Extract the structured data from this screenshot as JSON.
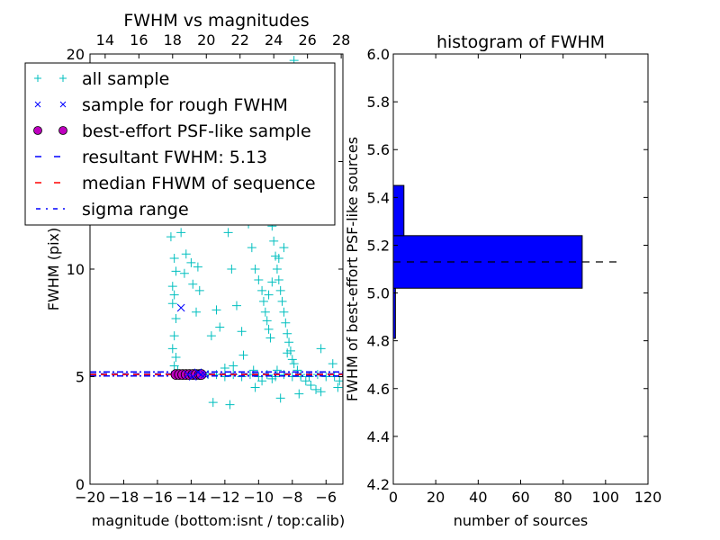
{
  "chart_data": [
    {
      "type": "scatter",
      "title": "FWHM vs magnitudes",
      "xlabel": "magnitude (bottom:isnt / top:calib)",
      "ylabel": "FWHM (pix)",
      "xlim": [
        -20,
        -5
      ],
      "ylim": [
        0,
        20
      ],
      "top_xlim": [
        13.1,
        28.1
      ],
      "xticks": [
        -20,
        -18,
        -16,
        -14,
        -12,
        -10,
        -8,
        -6
      ],
      "xtick_labels": [
        "−20",
        "−18",
        "−16",
        "−14",
        "−12",
        "−10",
        "−8",
        "−6"
      ],
      "yticks": [
        0,
        5,
        10,
        15,
        20
      ],
      "ytick_labels": [
        "0",
        "5",
        "10",
        "15",
        "20"
      ],
      "top_xticks": [
        14,
        16,
        18,
        20,
        22,
        24,
        26,
        28
      ],
      "top_xtick_labels": [
        "14",
        "16",
        "18",
        "20",
        "22",
        "24",
        "26",
        "28"
      ],
      "legend": {
        "placement": "upper-left",
        "entries": [
          {
            "label": "all sample",
            "marker": "+",
            "color": "#00bfbf"
          },
          {
            "label": "sample for rough FWHM",
            "marker": "x",
            "color": "#0000ff"
          },
          {
            "label": "best-effort PSF-like sample",
            "marker": "o",
            "color": "#bf00bf"
          },
          {
            "label": "resultant FWHM: 5.13",
            "marker": "--",
            "color": "#0000ff"
          },
          {
            "label": "median FHWM of sequence",
            "marker": "--",
            "color": "#ff0000"
          },
          {
            "label": "sigma range",
            "marker": "-.",
            "color": "#0000ff"
          }
        ]
      },
      "series": [
        {
          "name": "all sample",
          "color": "#00bfbf",
          "points": [
            [
              -15.2,
              11.5
            ],
            [
              -15.0,
              10.5
            ],
            [
              -15.1,
              9.2
            ],
            [
              -15.0,
              8.8
            ],
            [
              -14.9,
              7.7
            ],
            [
              -15.0,
              6.9
            ],
            [
              -15.1,
              6.3
            ],
            [
              -14.9,
              5.9
            ],
            [
              -15.0,
              5.5
            ],
            [
              -14.8,
              5.3
            ],
            [
              -14.6,
              11.7
            ],
            [
              -14.3,
              10.7
            ],
            [
              -14.0,
              10.3
            ],
            [
              -13.9,
              9.3
            ],
            [
              -14.4,
              9.8
            ],
            [
              -13.6,
              10.1
            ],
            [
              -13.5,
              9.0
            ],
            [
              -14.9,
              9.9
            ],
            [
              -15.1,
              8.4
            ],
            [
              -13.7,
              8.0
            ],
            [
              -12.5,
              8.1
            ],
            [
              -12.8,
              6.9
            ],
            [
              -12.3,
              7.3
            ],
            [
              -11.8,
              11.7
            ],
            [
              -11.6,
              10.0
            ],
            [
              -11.3,
              8.3
            ],
            [
              -11.0,
              7.1
            ],
            [
              -10.9,
              6.0
            ],
            [
              -11.5,
              5.5
            ],
            [
              -12.0,
              5.4
            ],
            [
              -10.6,
              12.1
            ],
            [
              -10.4,
              11.0
            ],
            [
              -10.2,
              10.0
            ],
            [
              -10.0,
              9.5
            ],
            [
              -9.8,
              9.0
            ],
            [
              -9.7,
              8.5
            ],
            [
              -9.6,
              8.0
            ],
            [
              -9.5,
              7.6
            ],
            [
              -9.4,
              7.2
            ],
            [
              -9.3,
              6.8
            ],
            [
              -9.2,
              12.0
            ],
            [
              -9.1,
              11.3
            ],
            [
              -9.0,
              10.6
            ],
            [
              -8.9,
              10.0
            ],
            [
              -8.8,
              9.5
            ],
            [
              -8.7,
              9.0
            ],
            [
              -8.6,
              8.5
            ],
            [
              -8.5,
              8.0
            ],
            [
              -8.4,
              7.5
            ],
            [
              -8.3,
              7.0
            ],
            [
              -8.2,
              6.6
            ],
            [
              -8.1,
              6.2
            ],
            [
              -8.0,
              5.8
            ],
            [
              -7.9,
              5.6
            ],
            [
              -7.7,
              5.3
            ],
            [
              -7.5,
              5.0
            ],
            [
              -7.2,
              4.8
            ],
            [
              -6.9,
              4.6
            ],
            [
              -6.6,
              4.4
            ],
            [
              -6.3,
              4.3
            ],
            [
              -9.5,
              15.0
            ],
            [
              -9.3,
              16.8
            ],
            [
              -9.6,
              13.5
            ],
            [
              -9.0,
              13.0
            ],
            [
              -8.7,
              12.5
            ],
            [
              -8.5,
              11.0
            ],
            [
              -8.8,
              10.5
            ],
            [
              -9.2,
              9.4
            ],
            [
              -9.4,
              8.8
            ],
            [
              -8.3,
              6.1
            ],
            [
              -7.9,
              19.7
            ],
            [
              -6.3,
              6.3
            ],
            [
              -5.6,
              5.6
            ],
            [
              -5.3,
              4.5
            ],
            [
              -5.2,
              4.8
            ],
            [
              -12.7,
              3.8
            ],
            [
              -11.7,
              3.7
            ],
            [
              -10.2,
              4.5
            ],
            [
              -8.7,
              4.0
            ],
            [
              -7.6,
              4.2
            ],
            [
              -13.0,
              5.1
            ],
            [
              -12.5,
              5.1
            ],
            [
              -12.0,
              5.0
            ],
            [
              -11.5,
              5.1
            ],
            [
              -11.0,
              5.0
            ],
            [
              -10.5,
              5.1
            ],
            [
              -10.0,
              5.0
            ],
            [
              -9.5,
              5.1
            ],
            [
              -9.0,
              5.0
            ],
            [
              -8.5,
              5.1
            ],
            [
              -8.0,
              5.0
            ],
            [
              -7.5,
              5.1
            ],
            [
              -7.0,
              5.0
            ],
            [
              -6.5,
              5.1
            ],
            [
              -6.0,
              5.0
            ],
            [
              -5.5,
              5.0
            ],
            [
              -9.8,
              4.8
            ],
            [
              -9.2,
              4.9
            ],
            [
              -8.9,
              5.3
            ],
            [
              -10.3,
              5.3
            ]
          ]
        },
        {
          "name": "sample for rough FWHM",
          "color": "#0000ff",
          "points": [
            [
              -14.6,
              8.2
            ],
            [
              -14.2,
              5.1
            ],
            [
              -13.9,
              5.0
            ],
            [
              -13.6,
              5.2
            ],
            [
              -13.4,
              5.1
            ],
            [
              -13.2,
              5.1
            ]
          ]
        },
        {
          "name": "best-effort PSF-like sample",
          "color": "#bf00bf",
          "points": [
            [
              -14.9,
              5.1
            ],
            [
              -14.7,
              5.1
            ],
            [
              -14.5,
              5.1
            ],
            [
              -14.3,
              5.1
            ],
            [
              -14.1,
              5.1
            ],
            [
              -13.9,
              5.1
            ],
            [
              -13.7,
              5.1
            ],
            [
              -13.5,
              5.1
            ],
            [
              -13.4,
              5.1
            ]
          ]
        }
      ],
      "hlines": [
        {
          "name": "resultant FWHM",
          "y": 5.13,
          "style": "dashed",
          "color": "#0000ff"
        },
        {
          "name": "median FHWM of sequence",
          "y": 5.1,
          "style": "dashed",
          "color": "#ff0000"
        },
        {
          "name": "sigma range low",
          "y": 5.03,
          "style": "dashdot",
          "color": "#0000ff"
        },
        {
          "name": "sigma range high",
          "y": 5.22,
          "style": "dashdot",
          "color": "#0000ff"
        }
      ]
    },
    {
      "type": "bar",
      "orientation": "horizontal",
      "title": "histogram of FWHM",
      "xlabel": "number of sources",
      "ylabel": "FWHM of best-effort PSF-like sources",
      "xlim": [
        0,
        120
      ],
      "ylim": [
        4.2,
        6.0
      ],
      "xticks": [
        0,
        20,
        40,
        60,
        80,
        100,
        120
      ],
      "xtick_labels": [
        "0",
        "20",
        "40",
        "60",
        "80",
        "100",
        "120"
      ],
      "yticks": [
        4.2,
        4.4,
        4.6,
        4.8,
        5.0,
        5.2,
        5.4,
        5.6,
        5.8,
        6.0
      ],
      "ytick_labels": [
        "4.2",
        "4.4",
        "4.6",
        "4.8",
        "5.0",
        "5.2",
        "5.4",
        "5.6",
        "5.8",
        "6.0"
      ],
      "bins": [
        [
          4.81,
          5.02
        ],
        [
          5.02,
          5.24
        ],
        [
          5.24,
          5.45
        ]
      ],
      "counts": [
        1,
        89,
        5
      ],
      "color": "#0000ff",
      "median_line": {
        "y": 5.13,
        "x_end": 107
      }
    }
  ]
}
